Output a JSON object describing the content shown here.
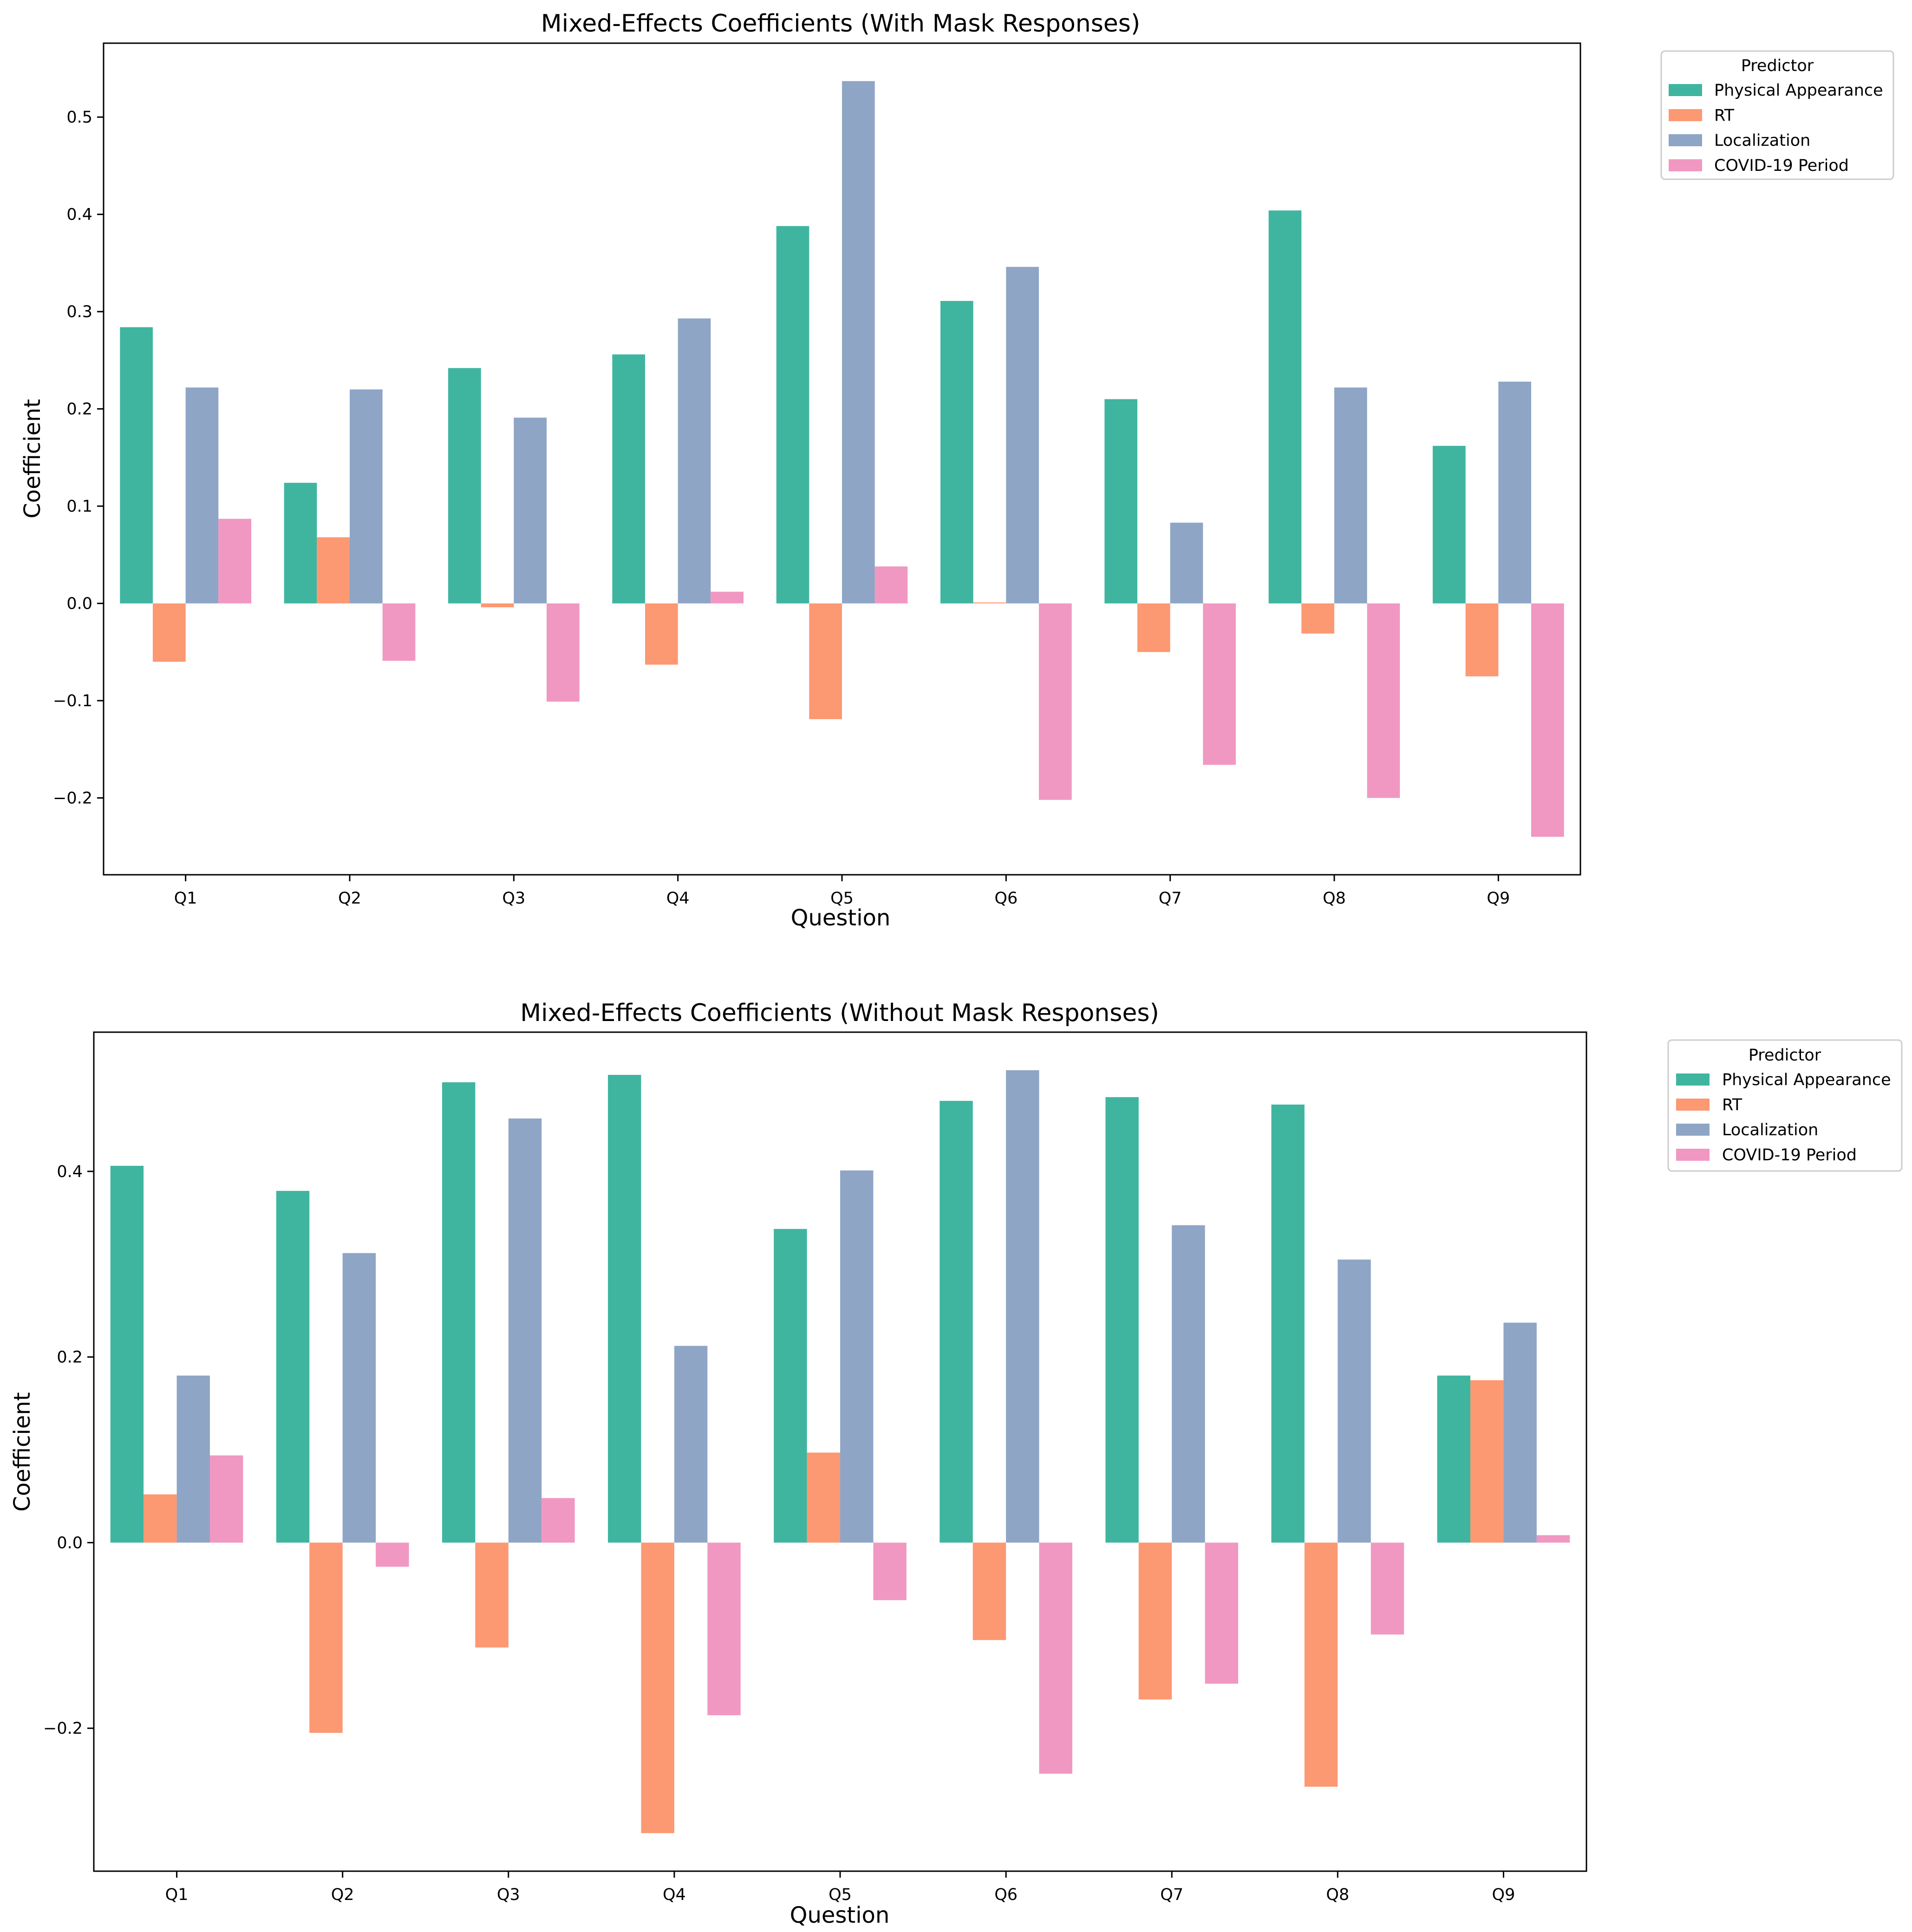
{
  "chart_data": [
    {
      "type": "bar",
      "title": "Mixed-Effects Coefficients (With Mask Responses)",
      "xlabel": "Question",
      "ylabel": "Coefficient",
      "categories": [
        "Q1",
        "Q2",
        "Q3",
        "Q4",
        "Q5",
        "Q6",
        "Q7",
        "Q8",
        "Q9"
      ],
      "ylim": [
        -0.279,
        0.576
      ],
      "yticks": [
        -0.2,
        -0.1,
        0.0,
        0.1,
        0.2,
        0.3,
        0.4,
        0.5
      ],
      "ytick_labels": [
        "−0.2",
        "−0.1",
        "0.0",
        "0.1",
        "0.2",
        "0.3",
        "0.4",
        "0.5"
      ],
      "grid": false,
      "legend": {
        "title": "Predictor",
        "placement": "outside top-right"
      },
      "series": [
        {
          "name": "Physical Appearance",
          "color": "#3fb5a0",
          "values": [
            0.284,
            0.124,
            0.242,
            0.256,
            0.388,
            0.311,
            0.21,
            0.404,
            0.162
          ]
        },
        {
          "name": "RT",
          "color": "#fc9872",
          "values": [
            -0.06,
            0.068,
            -0.004,
            -0.063,
            -0.119,
            0.001,
            -0.05,
            -0.031,
            -0.075
          ]
        },
        {
          "name": "Localization",
          "color": "#8fa5c6",
          "values": [
            0.222,
            0.22,
            0.191,
            0.293,
            0.537,
            0.346,
            0.083,
            0.222,
            0.228
          ]
        },
        {
          "name": "COVID-19 Period",
          "color": "#f098c1",
          "values": [
            0.087,
            -0.059,
            -0.101,
            0.012,
            0.038,
            -0.202,
            -0.166,
            -0.2,
            -0.24
          ]
        }
      ]
    },
    {
      "type": "bar",
      "title": "Mixed-Effects Coefficients (Without Mask Responses)",
      "xlabel": "Question",
      "ylabel": "Coefficient",
      "categories": [
        "Q1",
        "Q2",
        "Q3",
        "Q4",
        "Q5",
        "Q6",
        "Q7",
        "Q8",
        "Q9"
      ],
      "ylim": [
        -0.354,
        0.55
      ],
      "yticks": [
        -0.2,
        0.0,
        0.2,
        0.4
      ],
      "ytick_labels": [
        "−0.2",
        "0.0",
        "0.2",
        "0.4"
      ],
      "grid": false,
      "legend": {
        "title": "Predictor",
        "placement": "outside top-right"
      },
      "series": [
        {
          "name": "Physical Appearance",
          "color": "#3fb5a0",
          "values": [
            0.406,
            0.379,
            0.496,
            0.504,
            0.338,
            0.476,
            0.48,
            0.472,
            0.18
          ]
        },
        {
          "name": "RT",
          "color": "#fc9872",
          "values": [
            0.052,
            -0.205,
            -0.113,
            -0.313,
            0.097,
            -0.105,
            -0.169,
            -0.263,
            0.175
          ]
        },
        {
          "name": "Localization",
          "color": "#8fa5c6",
          "values": [
            0.18,
            0.312,
            0.457,
            0.212,
            0.401,
            0.509,
            0.342,
            0.305,
            0.237
          ]
        },
        {
          "name": "COVID-19 Period",
          "color": "#f098c1",
          "values": [
            0.094,
            -0.026,
            0.048,
            -0.186,
            -0.062,
            -0.249,
            -0.152,
            -0.099,
            0.008
          ]
        }
      ]
    }
  ]
}
